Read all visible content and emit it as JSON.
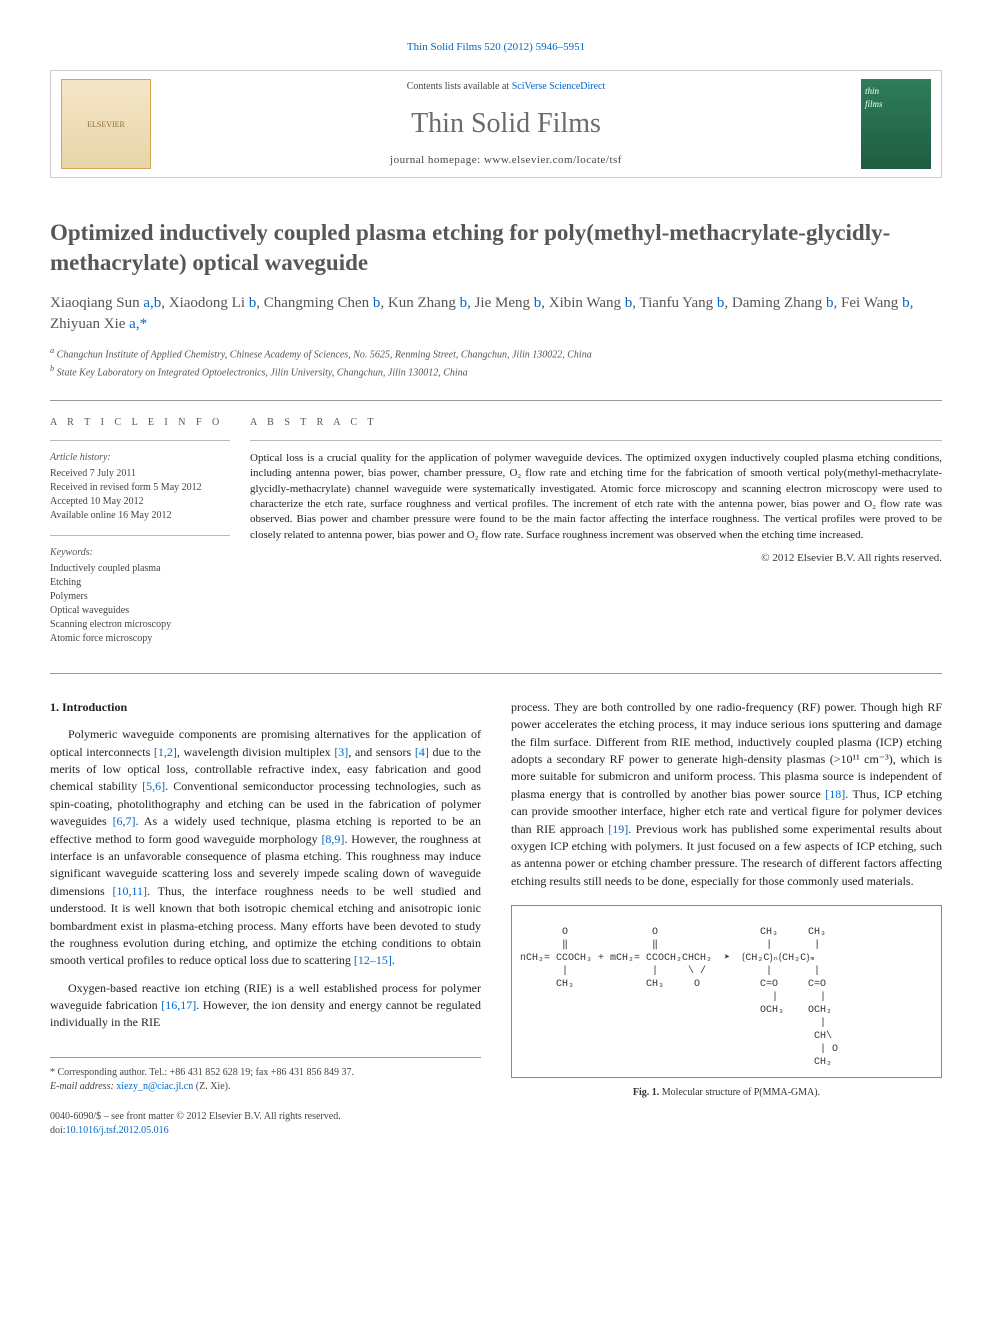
{
  "top_link": "Thin Solid Films 520 (2012) 5946–5951",
  "header": {
    "contents_prefix": "Contents lists available at ",
    "contents_link": "SciVerse ScienceDirect",
    "journal_name": "Thin Solid Films",
    "homepage_prefix": "journal homepage: ",
    "homepage_url": "www.elsevier.com/locate/tsf",
    "elsevier_label": "ELSEVIER",
    "cover_text": "thin\nfilms"
  },
  "title": "Optimized inductively coupled plasma etching for poly(methyl-methacrylate-glycidly-methacrylate) optical waveguide",
  "authors_html": "Xiaoqiang Sun <a>a,b</a>, Xiaodong Li <a>b</a>, Changming Chen <a>b</a>, Kun Zhang <a>b</a>, Jie Meng <a>b</a>, Xibin Wang <a>b</a>, Tianfu Yang <a>b</a>, Daming Zhang <a>b</a>, Fei Wang <a>b</a>, Zhiyuan Xie <a>a,</a><span class=\"star\">*</span>",
  "affiliations": {
    "a": "Changchun Institute of Applied Chemistry, Chinese Academy of Sciences, No. 5625, Renming Street, Changchun, Jilin 130022, China",
    "b": "State Key Laboratory on Integrated Optoelectronics, Jilin University, Changchun, Jilin 130012, China"
  },
  "article_info": {
    "heading": "A R T I C L E   I N F O",
    "history_label": "Article history:",
    "history": [
      "Received 7 July 2011",
      "Received in revised form 5 May 2012",
      "Accepted 10 May 2012",
      "Available online 16 May 2012"
    ],
    "keywords_label": "Keywords:",
    "keywords": [
      "Inductively coupled plasma",
      "Etching",
      "Polymers",
      "Optical waveguides",
      "Scanning electron microscopy",
      "Atomic force microscopy"
    ]
  },
  "abstract": {
    "heading": "A B S T R A C T",
    "text": "Optical loss is a crucial quality for the application of polymer waveguide devices. The optimized oxygen inductively coupled plasma etching conditions, including antenna power, bias power, chamber pressure, O₂ flow rate and etching time for the fabrication of smooth vertical poly(methyl-methacrylate-glycidly-methacrylate) channel waveguide were systematically investigated. Atomic force microscopy and scanning electron microscopy were used to characterize the etch rate, surface roughness and vertical profiles. The increment of etch rate with the antenna power, bias power and O₂ flow rate was observed. Bias power and chamber pressure were found to be the main factor affecting the interface roughness. The vertical profiles were proved to be closely related to antenna power, bias power and O₂ flow rate. Surface roughness increment was observed when the etching time increased.",
    "copyright": "© 2012 Elsevier B.V. All rights reserved."
  },
  "body": {
    "section1_heading": "1. Introduction",
    "left_para1": "Polymeric waveguide components are promising alternatives for the application of optical interconnects [1,2], wavelength division multiplex [3], and sensors [4] due to the merits of low optical loss, controllable refractive index, easy fabrication and good chemical stability [5,6]. Conventional semiconductor processing technologies, such as spin-coating, photolithography and etching can be used in the fabrication of polymer waveguides [6,7]. As a widely used technique, plasma etching is reported to be an effective method to form good waveguide morphology [8,9]. However, the roughness at interface is an unfavorable consequence of plasma etching. This roughness may induce significant waveguide scattering loss and severely impede scaling down of waveguide dimensions [10,11]. Thus, the interface roughness needs to be well studied and understood. It is well known that both isotropic chemical etching and anisotropic ionic bombardment exist in plasma-etching process. Many efforts have been devoted to study the roughness evolution during etching, and optimize the etching conditions to obtain smooth vertical profiles to reduce optical loss due to scattering [12–15].",
    "left_para2": "Oxygen-based reactive ion etching (RIE) is a well established process for polymer waveguide fabrication [16,17]. However, the ion density and energy cannot be regulated individually in the RIE",
    "right_para1": "process. They are both controlled by one radio-frequency (RF) power. Though high RF power accelerates the etching process, it may induce serious ions sputtering and damage the film surface. Different from RIE method, inductively coupled plasma (ICP) etching adopts a secondary RF power to generate high-density plasmas (>10¹¹ cm⁻³), which is more suitable for submicron and uniform process. This plasma source is independent of plasma energy that is controlled by another bias power source [18]. Thus, ICP etching can provide smoother interface, higher etch rate and vertical figure for polymer devices than RIE approach [19]. Previous work has published some experimental results about oxygen ICP etching with polymers. It just focused on a few aspects of ICP etching, such as antenna power or etching chamber pressure. The research of different factors affecting etching results still needs to be done, especially for those commonly used materials.",
    "refs": {
      "r1_2": "[1,2]",
      "r3": "[3]",
      "r4": "[4]",
      "r5_6": "[5,6]",
      "r6_7": "[6,7]",
      "r8_9": "[8,9]",
      "r10_11": "[10,11]",
      "r12_15": "[12–15]",
      "r16_17": "[16,17]",
      "r18": "[18]",
      "r19": "[19]"
    }
  },
  "figure1": {
    "ascii": "       O              O                 CH₃     CH₃\n       ‖              ‖                  |       |\nnCH₂= CCOCH₃ + mCH₂= CCOCH₂CHCH₂  ➤  ⟮CH₂C⟯ₙ⟮CH₂C⟯ₘ\n       |              |     \\ /          |       |\n      CH₃            CH₃     O          C=O     C=O\n                                          |       |\n                                        OCH₃    OCH₂\n                                                  |\n                                                 CH\\\n                                                  | O\n                                                 CH₂",
    "caption_bold": "Fig. 1.",
    "caption_text": " Molecular structure of P(MMA-GMA)."
  },
  "footer": {
    "corresponding": "* Corresponding author. Tel.: +86 431 852 628 19; fax +86 431 856 849 37.",
    "email_label": "E-mail address: ",
    "email": "xiezy_n@ciac.jl.cn",
    "email_suffix": " (Z. Xie).",
    "issn_line": "0040-6090/$ – see front matter © 2012 Elsevier B.V. All rights reserved.",
    "doi_prefix": "doi:",
    "doi": "10.1016/j.tsf.2012.05.016"
  },
  "colors": {
    "link": "#0066cc",
    "heading_gray": "#575757",
    "border_gray": "#999999"
  }
}
